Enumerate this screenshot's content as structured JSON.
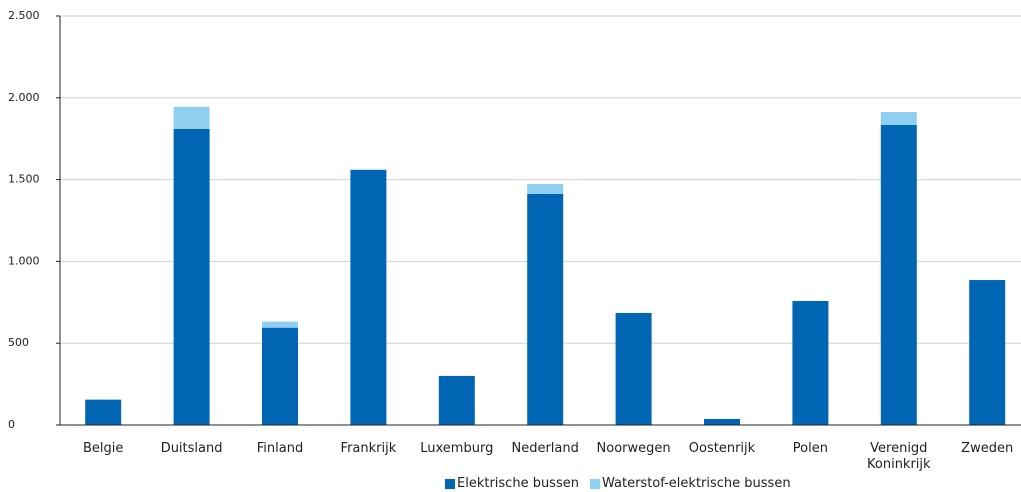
{
  "chart_data": {
    "type": "stacked_bar",
    "categories": [
      "Belgie",
      "Duitsland",
      "Finland",
      "Frankrijk",
      "Luxemburg",
      "Nederland",
      "Noorwegen",
      "Oostenrijk",
      "Polen",
      "Verenigd Koninkrijk",
      "Zweden"
    ],
    "series": [
      {
        "name": "Elektrische bussen",
        "color": "#0066b3",
        "values": [
          155,
          1810,
          595,
          1560,
          300,
          1412,
          685,
          37,
          758,
          1834,
          886
        ]
      },
      {
        "name": "Waterstof-elektrische bussen",
        "color": "#8fd0f0",
        "values": [
          null,
          135,
          37,
          null,
          null,
          61,
          null,
          null,
          null,
          79,
          null
        ]
      }
    ],
    "ylim": [
      0,
      2500
    ],
    "yticks": [
      0,
      500,
      {
        "value": 1000,
        "label": "1.000"
      },
      {
        "value": 1500,
        "label": "1.500"
      },
      {
        "value": 2000,
        "label": "2.000"
      },
      {
        "value": 2500,
        "label": "2.500"
      }
    ],
    "grid": true,
    "legend": "bottom"
  }
}
